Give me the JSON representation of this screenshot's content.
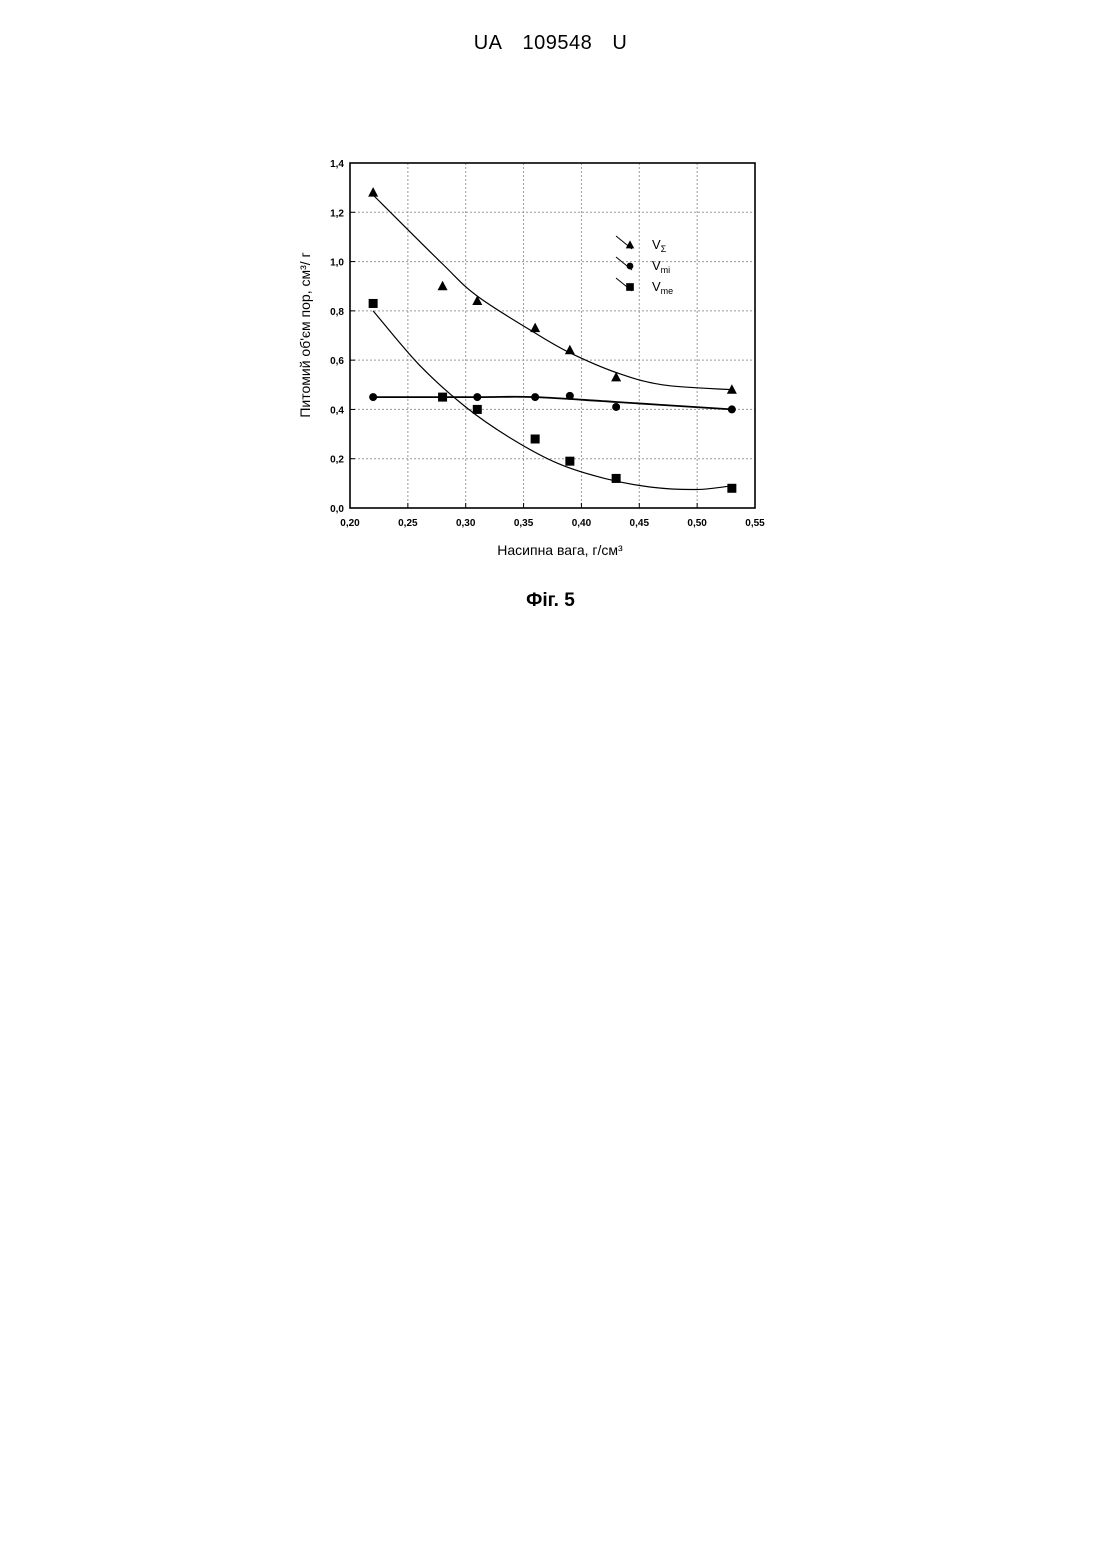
{
  "header": {
    "country": "UA",
    "number": "109548",
    "kind": "U"
  },
  "figure_caption": "Фіг. 5",
  "chart_data": {
    "type": "scatter",
    "xlabel": "Насипна вага, г/см³",
    "ylabel": "Питомий об'єм пор, см³/ г",
    "xlim": [
      0.2,
      0.55
    ],
    "ylim": [
      0.0,
      1.4
    ],
    "xticks": [
      "0,20",
      "0,25",
      "0,30",
      "0,35",
      "0,40",
      "0,45",
      "0,50",
      "0,55"
    ],
    "yticks": [
      "0,0",
      "0,2",
      "0,4",
      "0,6",
      "0,8",
      "1,0",
      "1,2",
      "1,4"
    ],
    "grid": true,
    "legend_position": "top-right",
    "series": [
      {
        "name": "VΣ",
        "legend_main": "V",
        "legend_sub": "Σ",
        "marker": "triangle",
        "x": [
          0.22,
          0.28,
          0.31,
          0.36,
          0.39,
          0.43,
          0.53
        ],
        "y": [
          1.28,
          0.9,
          0.84,
          0.73,
          0.64,
          0.53,
          0.48
        ],
        "fit": [
          [
            0.22,
            1.27
          ],
          [
            0.28,
            0.99
          ],
          [
            0.31,
            0.86
          ],
          [
            0.36,
            0.71
          ],
          [
            0.39,
            0.63
          ],
          [
            0.43,
            0.55
          ],
          [
            0.47,
            0.5
          ],
          [
            0.53,
            0.48
          ]
        ]
      },
      {
        "name": "Vmi",
        "legend_main": "V",
        "legend_sub": "mi",
        "marker": "circle",
        "x": [
          0.22,
          0.28,
          0.31,
          0.36,
          0.39,
          0.43,
          0.53
        ],
        "y": [
          0.45,
          0.45,
          0.45,
          0.45,
          0.455,
          0.41,
          0.4
        ],
        "fit": [
          [
            0.22,
            0.45
          ],
          [
            0.31,
            0.45
          ],
          [
            0.36,
            0.45
          ],
          [
            0.43,
            0.43
          ],
          [
            0.53,
            0.4
          ]
        ]
      },
      {
        "name": "Vme",
        "legend_main": "V",
        "legend_sub": "me",
        "marker": "square",
        "x": [
          0.22,
          0.28,
          0.31,
          0.36,
          0.39,
          0.43,
          0.53
        ],
        "y": [
          0.83,
          0.45,
          0.4,
          0.28,
          0.19,
          0.12,
          0.08
        ],
        "fit": [
          [
            0.22,
            0.8
          ],
          [
            0.26,
            0.58
          ],
          [
            0.3,
            0.41
          ],
          [
            0.34,
            0.28
          ],
          [
            0.38,
            0.18
          ],
          [
            0.42,
            0.12
          ],
          [
            0.46,
            0.085
          ],
          [
            0.5,
            0.075
          ],
          [
            0.53,
            0.09
          ]
        ]
      }
    ]
  }
}
